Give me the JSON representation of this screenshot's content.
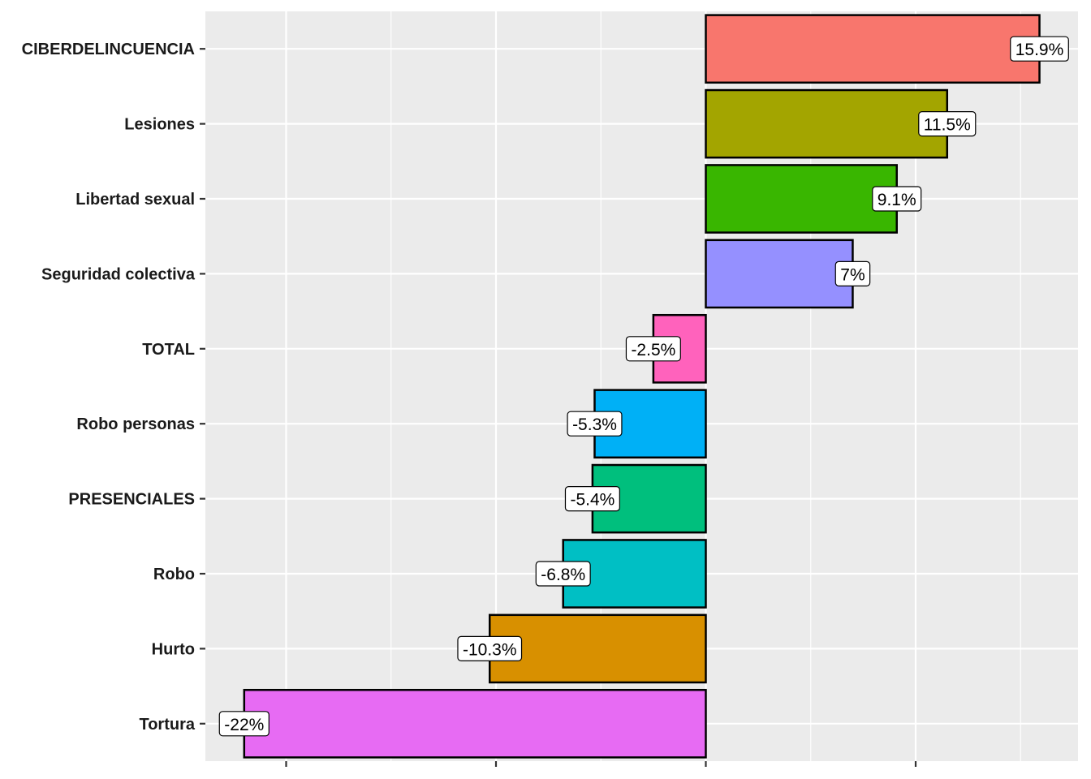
{
  "chart_data": {
    "type": "bar",
    "orientation": "horizontal",
    "title": "",
    "xlabel": "",
    "ylabel": "",
    "xlim": [
      -23.5,
      18
    ],
    "x_major_ticks": [
      -20,
      -10,
      0,
      10
    ],
    "x_minor_grid": [
      -15,
      -5,
      5,
      15
    ],
    "x_tick_labels_shown": false,
    "grid": true,
    "legend": "none",
    "categories": [
      "CIBERDELINCUENCIA",
      "Lesiones",
      "Libertad sexual",
      "Seguridad colectiva",
      "TOTAL",
      "Robo personas",
      "PRESENCIALES",
      "Robo",
      "Hurto",
      "Tortura"
    ],
    "values": [
      15.9,
      11.5,
      9.1,
      7,
      -2.5,
      -5.3,
      -5.4,
      -6.8,
      -10.3,
      -22
    ],
    "labels": [
      "15.9%",
      "11.5%",
      "9.1%",
      "7%",
      "-2.5%",
      "-5.3%",
      "-5.4%",
      "-6.8%",
      "-10.3%",
      "-22%"
    ],
    "colors": [
      "#F8766D",
      "#A3A500",
      "#39B600",
      "#9590FF",
      "#FF62BC",
      "#00B0F6",
      "#00BF7D",
      "#00BFC4",
      "#D89000",
      "#E76BF3"
    ]
  }
}
